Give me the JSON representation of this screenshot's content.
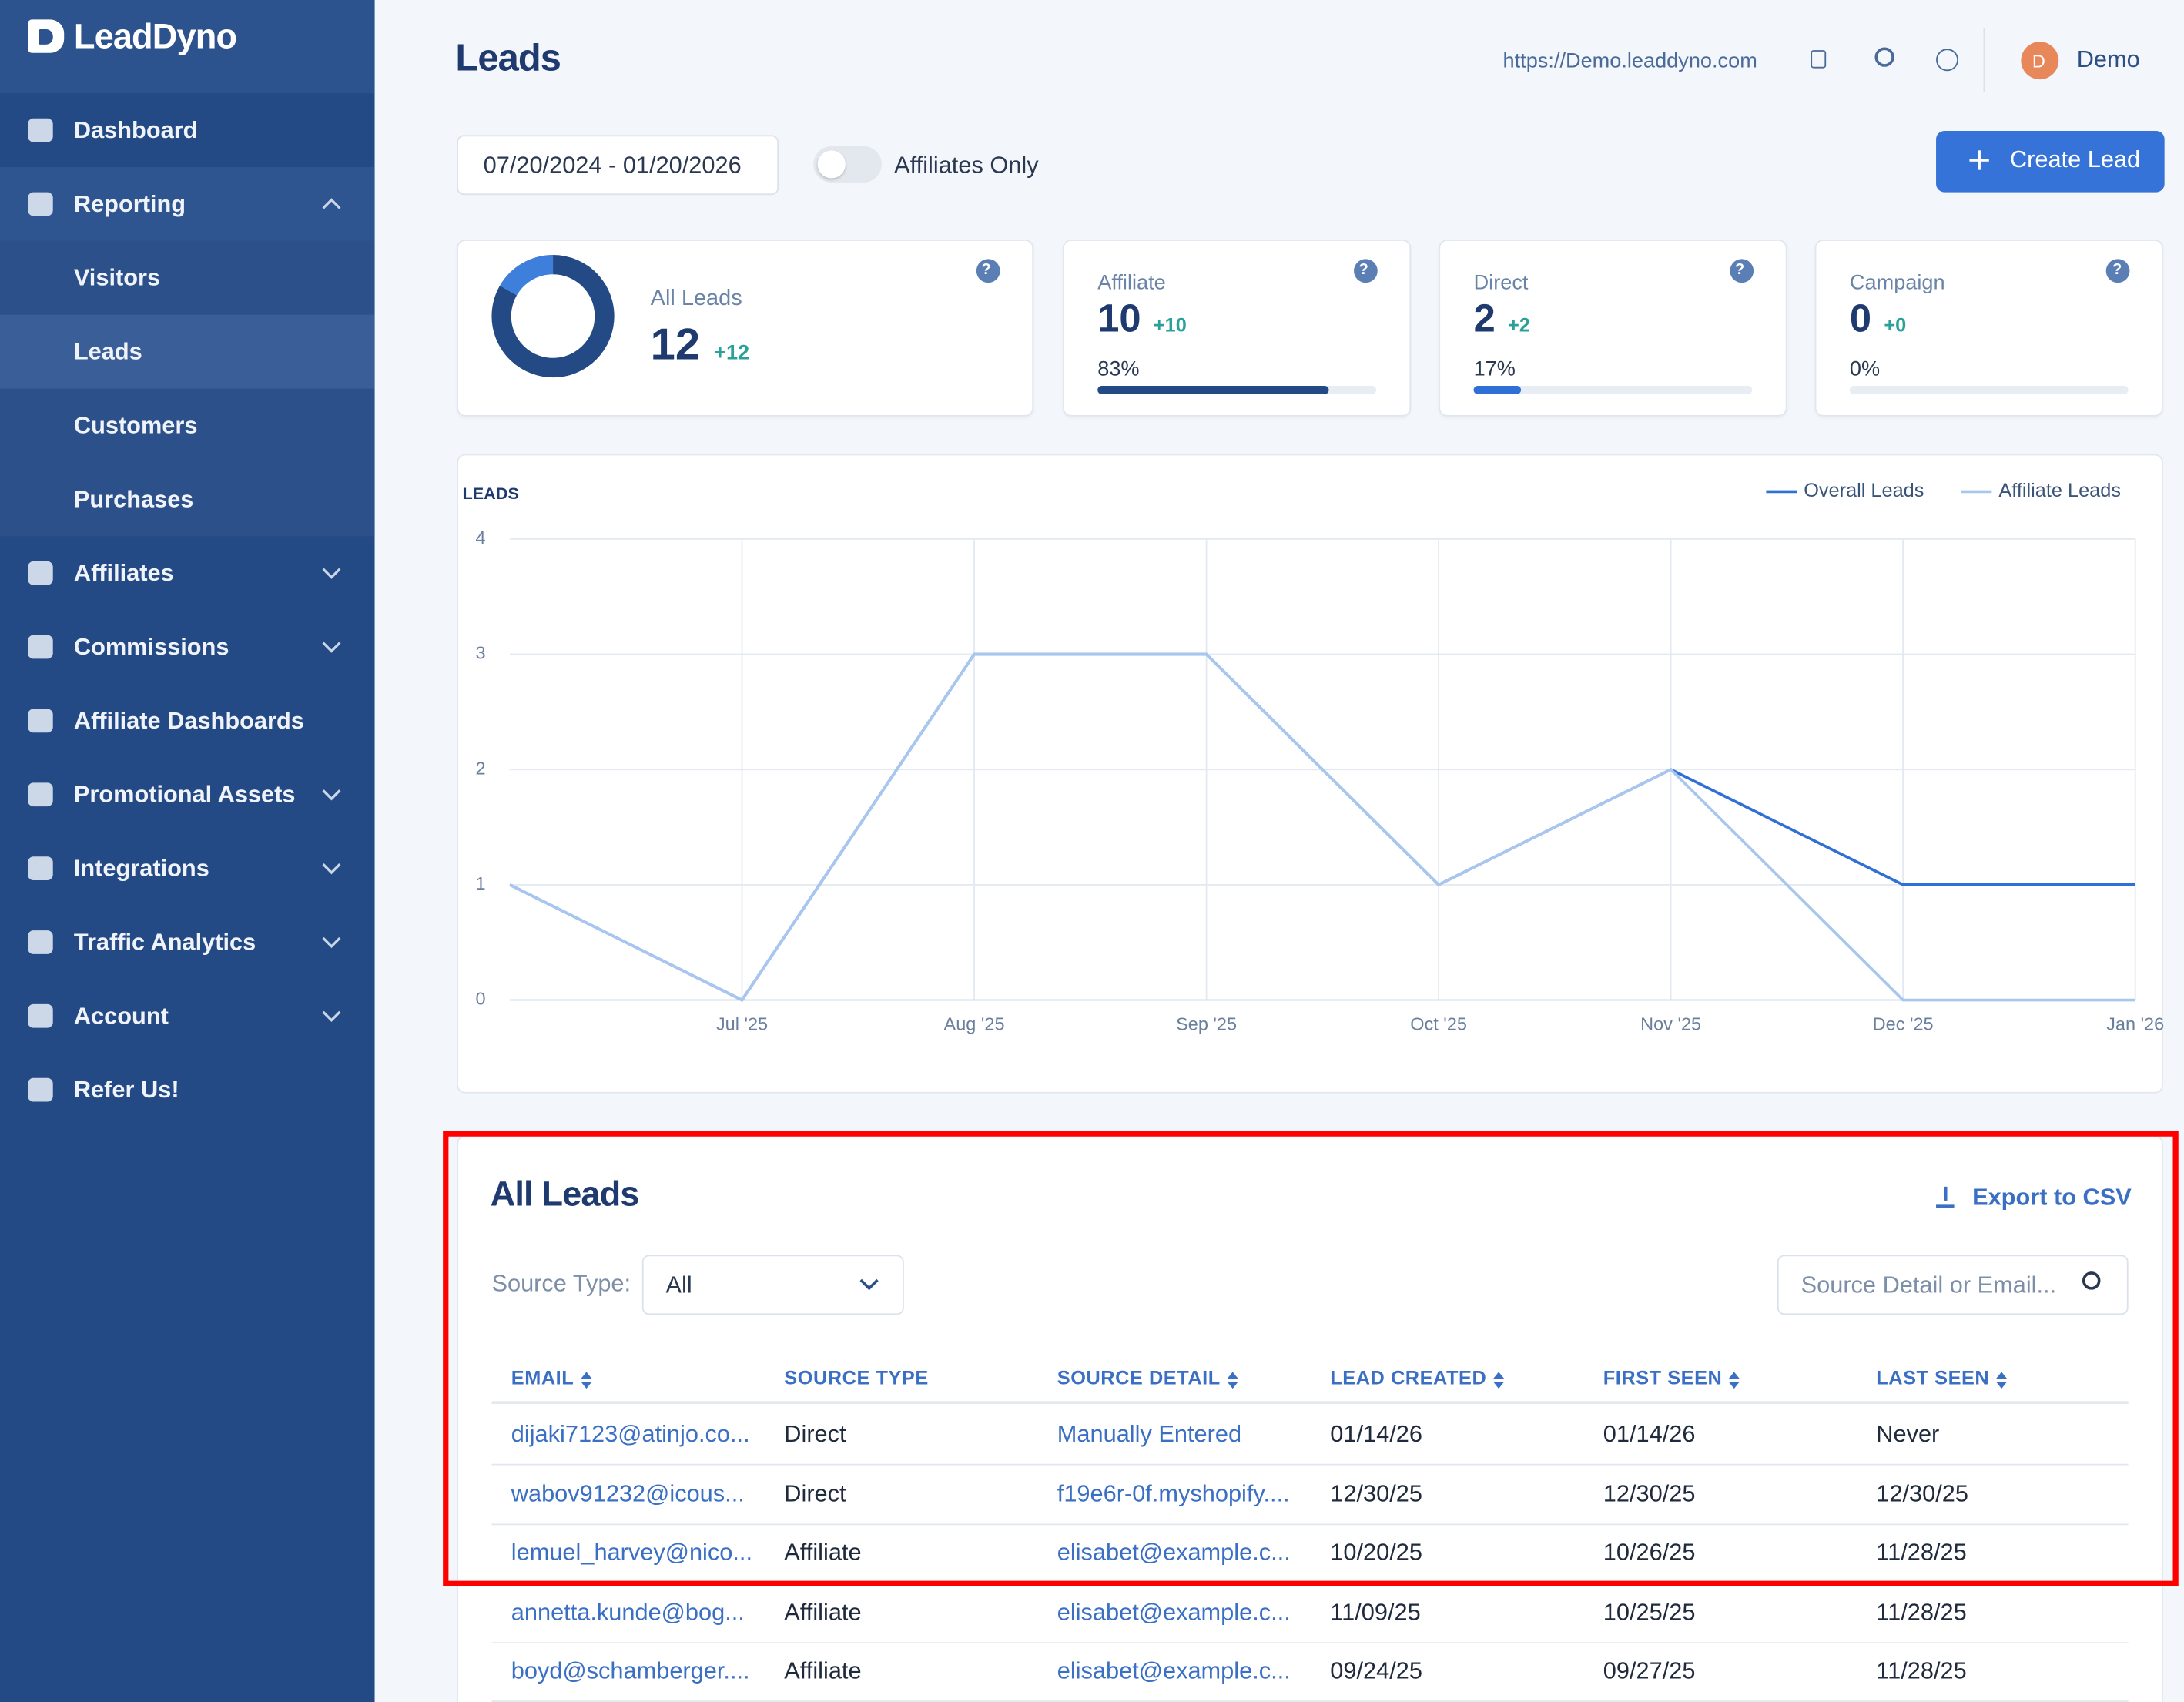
{
  "sidebar": {
    "brand": "LeadDyno",
    "menu": [
      {
        "label": "Dashboard",
        "expandable": false
      },
      {
        "label": "Reporting",
        "expandable": true,
        "open": true,
        "submenu": [
          "Visitors",
          "Leads",
          "Customers",
          "Purchases"
        ],
        "active": 1
      },
      {
        "label": "Affiliates",
        "expandable": true
      },
      {
        "label": "Commissions",
        "expandable": true
      },
      {
        "label": "Affiliate Dashboards",
        "expandable": false
      },
      {
        "label": "Promotional Assets",
        "expandable": true
      },
      {
        "label": "Integrations",
        "expandable": true
      },
      {
        "label": "Traffic Analytics",
        "expandable": true
      },
      {
        "label": "Account",
        "expandable": true
      },
      {
        "label": "Refer Us!",
        "expandable": false
      }
    ]
  },
  "header": {
    "title": "Leads",
    "url": "https://Demo.leaddyno.com",
    "user_initial": "D",
    "user": "Demo"
  },
  "filters": {
    "date_range": "07/20/2024 - 01/20/2026",
    "toggle_label": "Affiliates Only",
    "create_button": "Create Lead"
  },
  "stats": [
    {
      "label": "All Leads",
      "value": 12,
      "delta": "+12"
    },
    {
      "label": "Affiliate",
      "value": 10,
      "delta": "+10",
      "percent": 83,
      "percent_label": "83%",
      "color": "#244a86"
    },
    {
      "label": "Direct",
      "value": 2,
      "delta": "+2",
      "percent": 17,
      "percent_label": "17%",
      "color": "#2f6fd6"
    },
    {
      "label": "Campaign",
      "value": 0,
      "delta": "+0",
      "percent": 0,
      "percent_label": "0%",
      "color": "#2f6fd6"
    }
  ],
  "chart_data": {
    "type": "line",
    "title": "LEADS",
    "x": [
      null,
      "Jul '25",
      "Aug '25",
      "Sep '25",
      "Oct '25",
      "Nov '25",
      "Dec '25",
      "Jan '26"
    ],
    "series": [
      {
        "name": "Overall Leads",
        "color": "#2f6fd6",
        "values": [
          1,
          0,
          3,
          3,
          1,
          2,
          1,
          1
        ]
      },
      {
        "name": "Affiliate Leads",
        "color": "#a9c6ee",
        "values": [
          1,
          0,
          3,
          3,
          1,
          2,
          0,
          0
        ]
      }
    ],
    "ylim": [
      0,
      4
    ],
    "yticks": [
      0,
      1,
      2,
      3,
      4
    ],
    "grid": true
  },
  "table": {
    "title": "All Leads",
    "export": "Export to CSV",
    "filter_label": "Source Type:",
    "filter_value": "All",
    "search_placeholder": "Source Detail or Email...",
    "link_columns": [
      0,
      2
    ],
    "columns": [
      {
        "label": "EMAIL",
        "sortable": true
      },
      {
        "label": "SOURCE TYPE",
        "sortable": false
      },
      {
        "label": "SOURCE DETAIL",
        "sortable": true
      },
      {
        "label": "LEAD CREATED",
        "sortable": true
      },
      {
        "label": "FIRST SEEN",
        "sortable": true
      },
      {
        "label": "LAST SEEN",
        "sortable": true
      }
    ],
    "rows": [
      [
        "dijaki7123@atinjo.co...",
        "Direct",
        "Manually Entered",
        "01/14/26",
        "01/14/26",
        "Never"
      ],
      [
        "wabov91232@icous...",
        "Direct",
        "f19e6r-0f.myshopify....",
        "12/30/25",
        "12/30/25",
        "12/30/25"
      ],
      [
        "lemuel_harvey@nico...",
        "Affiliate",
        "elisabet@example.c...",
        "10/20/25",
        "10/26/25",
        "11/28/25"
      ],
      [
        "annetta.kunde@bog...",
        "Affiliate",
        "elisabet@example.c...",
        "11/09/25",
        "10/25/25",
        "11/28/25"
      ],
      [
        "boyd@schamberger....",
        "Affiliate",
        "elisabet@example.c...",
        "09/24/25",
        "09/27/25",
        "11/28/25"
      ]
    ]
  }
}
